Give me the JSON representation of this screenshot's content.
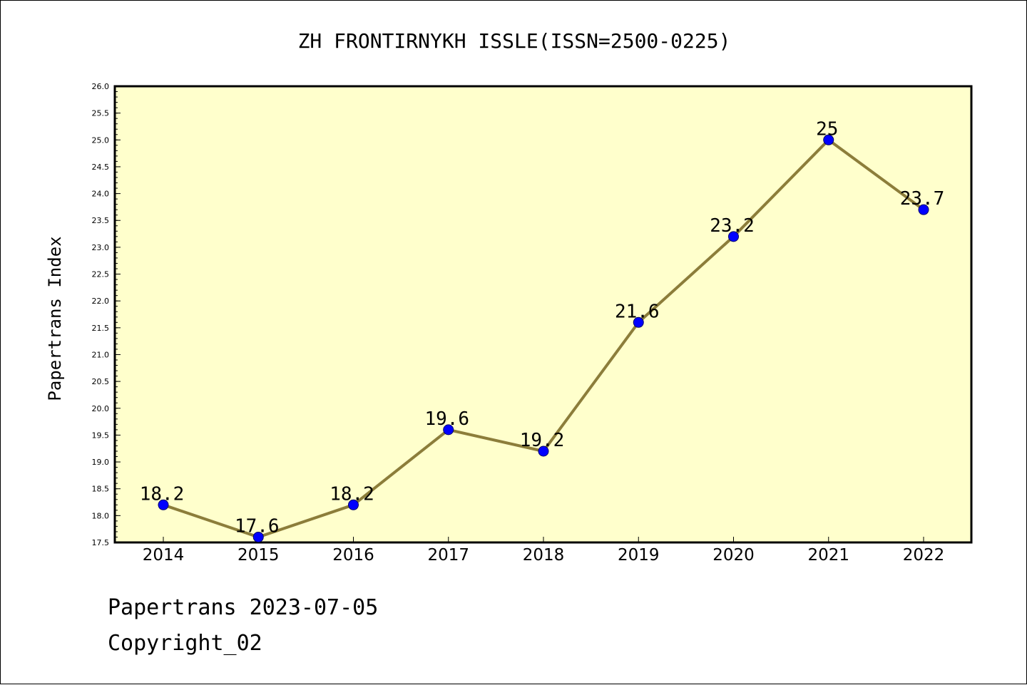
{
  "chart_data": {
    "type": "line",
    "title": "ZH FRONTIRNYKH ISSLE(ISSN=2500-0225)",
    "xlabel": "",
    "ylabel": "Papertrans Index",
    "categories": [
      "2014",
      "2015",
      "2016",
      "2017",
      "2018",
      "2019",
      "2020",
      "2021",
      "2022"
    ],
    "values": [
      18.2,
      17.6,
      18.2,
      19.6,
      19.2,
      21.6,
      23.2,
      25,
      23.7
    ],
    "data_labels": [
      "18.2",
      "17.6",
      "18.2",
      "19.6",
      "19.2",
      "21.6",
      "23.2",
      "25",
      "23.7"
    ],
    "ylim": [
      17.5,
      26.0
    ],
    "yticks": [
      "17.5",
      "18.0",
      "18.5",
      "19.0",
      "19.5",
      "20.0",
      "20.5",
      "21.0",
      "21.5",
      "22.0",
      "22.5",
      "23.0",
      "23.5",
      "24.0",
      "24.5",
      "25.0",
      "25.5",
      "26.0"
    ],
    "grid": false,
    "legend": "none",
    "colors": {
      "line": "#8c7d3a",
      "marker": "#0000ff",
      "plot_background": "#ffffcc"
    }
  },
  "footer": {
    "source": "Papertrans 2023-07-05",
    "copyright": "Copyright_02"
  }
}
